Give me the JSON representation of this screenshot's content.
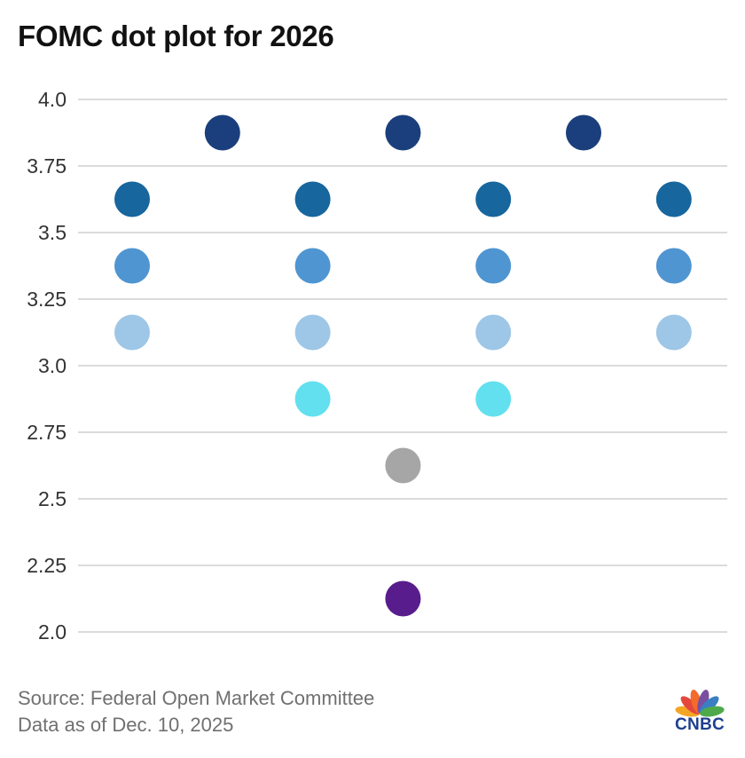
{
  "title": "FOMC dot plot for 2026",
  "footer": {
    "source": "Source: Federal Open Market Committee",
    "data_as_of": "Data as of Dec. 10, 2025"
  },
  "logo": {
    "text": "CNBC",
    "icon": "peacock-icon",
    "colors": [
      "#f3a623",
      "#e4483c",
      "#f36b2b",
      "#7a4fa0",
      "#3a7ec4",
      "#4ea94b"
    ]
  },
  "chart_data": {
    "type": "scatter",
    "title": "FOMC dot plot for 2026",
    "xlabel": "",
    "ylabel": "",
    "ylim": [
      2.0,
      4.0
    ],
    "y_ticks": [
      "4.0",
      "3.75",
      "3.5",
      "3.25",
      "3.0",
      "2.75",
      "2.5",
      "2.25",
      "2.0"
    ],
    "y_tick_values": [
      4.0,
      3.75,
      3.5,
      3.25,
      3.0,
      2.75,
      2.5,
      2.25,
      2.0
    ],
    "grid": true,
    "dot_columns": 7,
    "points": [
      {
        "column": 2,
        "y": 3.875,
        "color": "#1b3f7c"
      },
      {
        "column": 4,
        "y": 3.875,
        "color": "#1b3f7c"
      },
      {
        "column": 6,
        "y": 3.875,
        "color": "#1b3f7c"
      },
      {
        "column": 1,
        "y": 3.625,
        "color": "#17669e"
      },
      {
        "column": 3,
        "y": 3.625,
        "color": "#17669e"
      },
      {
        "column": 5,
        "y": 3.625,
        "color": "#17669e"
      },
      {
        "column": 7,
        "y": 3.625,
        "color": "#17669e"
      },
      {
        "column": 1,
        "y": 3.375,
        "color": "#4f95d1"
      },
      {
        "column": 3,
        "y": 3.375,
        "color": "#4f95d1"
      },
      {
        "column": 5,
        "y": 3.375,
        "color": "#4f95d1"
      },
      {
        "column": 7,
        "y": 3.375,
        "color": "#4f95d1"
      },
      {
        "column": 1,
        "y": 3.125,
        "color": "#9ec6e6"
      },
      {
        "column": 3,
        "y": 3.125,
        "color": "#9ec6e6"
      },
      {
        "column": 5,
        "y": 3.125,
        "color": "#9ec6e6"
      },
      {
        "column": 7,
        "y": 3.125,
        "color": "#9ec6e6"
      },
      {
        "column": 3,
        "y": 2.875,
        "color": "#63e0ef"
      },
      {
        "column": 5,
        "y": 2.875,
        "color": "#63e0ef"
      },
      {
        "column": 4,
        "y": 2.625,
        "color": "#a6a6a6"
      },
      {
        "column": 4,
        "y": 2.125,
        "color": "#591c8c"
      }
    ]
  }
}
